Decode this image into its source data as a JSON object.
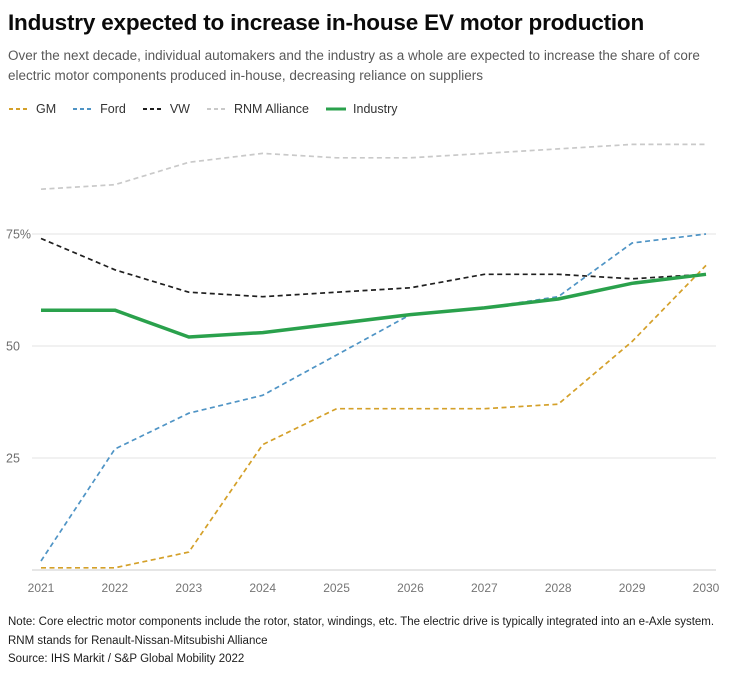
{
  "page": {
    "title": "Industry expected to increase in-house EV motor production",
    "subtitle": "Over the next decade, individual automakers and the industry as a whole are expected to increase the share of core electric motor components produced in-house, decreasing reliance on suppliers",
    "notes": [
      "Note: Core electric motor components include the rotor, stator, windings, etc. The electric drive is typically integrated into an e-Axle system.",
      "RNM stands for Renault-Nissan-Mitsubishi Alliance",
      "Source: IHS Markit / S&P Global Mobility 2022"
    ]
  },
  "chart_data": {
    "type": "line",
    "x": [
      2021,
      2022,
      2023,
      2024,
      2025,
      2026,
      2027,
      2028,
      2029,
      2030
    ],
    "series": [
      {
        "name": "GM",
        "color": "#d4a029",
        "style": "dashed",
        "values": [
          0.5,
          0.5,
          4,
          28,
          36,
          36,
          36,
          37,
          51,
          68
        ]
      },
      {
        "name": "Ford",
        "color": "#4f94c5",
        "style": "dashed",
        "values": [
          2,
          27,
          35,
          39,
          48,
          57,
          58.5,
          61,
          73,
          75
        ]
      },
      {
        "name": "VW",
        "color": "#1f1f1f",
        "style": "dashed",
        "values": [
          74,
          67,
          62,
          61,
          62,
          63,
          66,
          66,
          65,
          66
        ]
      },
      {
        "name": "RNM Alliance",
        "color": "#c9c9c9",
        "style": "dashed",
        "values": [
          85,
          86,
          91,
          93,
          92,
          92,
          93,
          94,
          95,
          95
        ]
      },
      {
        "name": "Industry",
        "color": "#2aa14c",
        "style": "solid",
        "values": [
          58,
          58,
          52,
          53,
          55,
          57,
          58.5,
          60.5,
          64,
          66
        ]
      }
    ],
    "ylim": [
      0,
      100
    ],
    "yticks": [
      {
        "value": 25,
        "label": "25"
      },
      {
        "value": 50,
        "label": "50"
      },
      {
        "value": 75,
        "label": "75%"
      }
    ],
    "grid": true,
    "legend_position": "top",
    "tick_color": "#757575",
    "grid_color": "#e3e3e3",
    "axis_color": "#cccccc"
  }
}
